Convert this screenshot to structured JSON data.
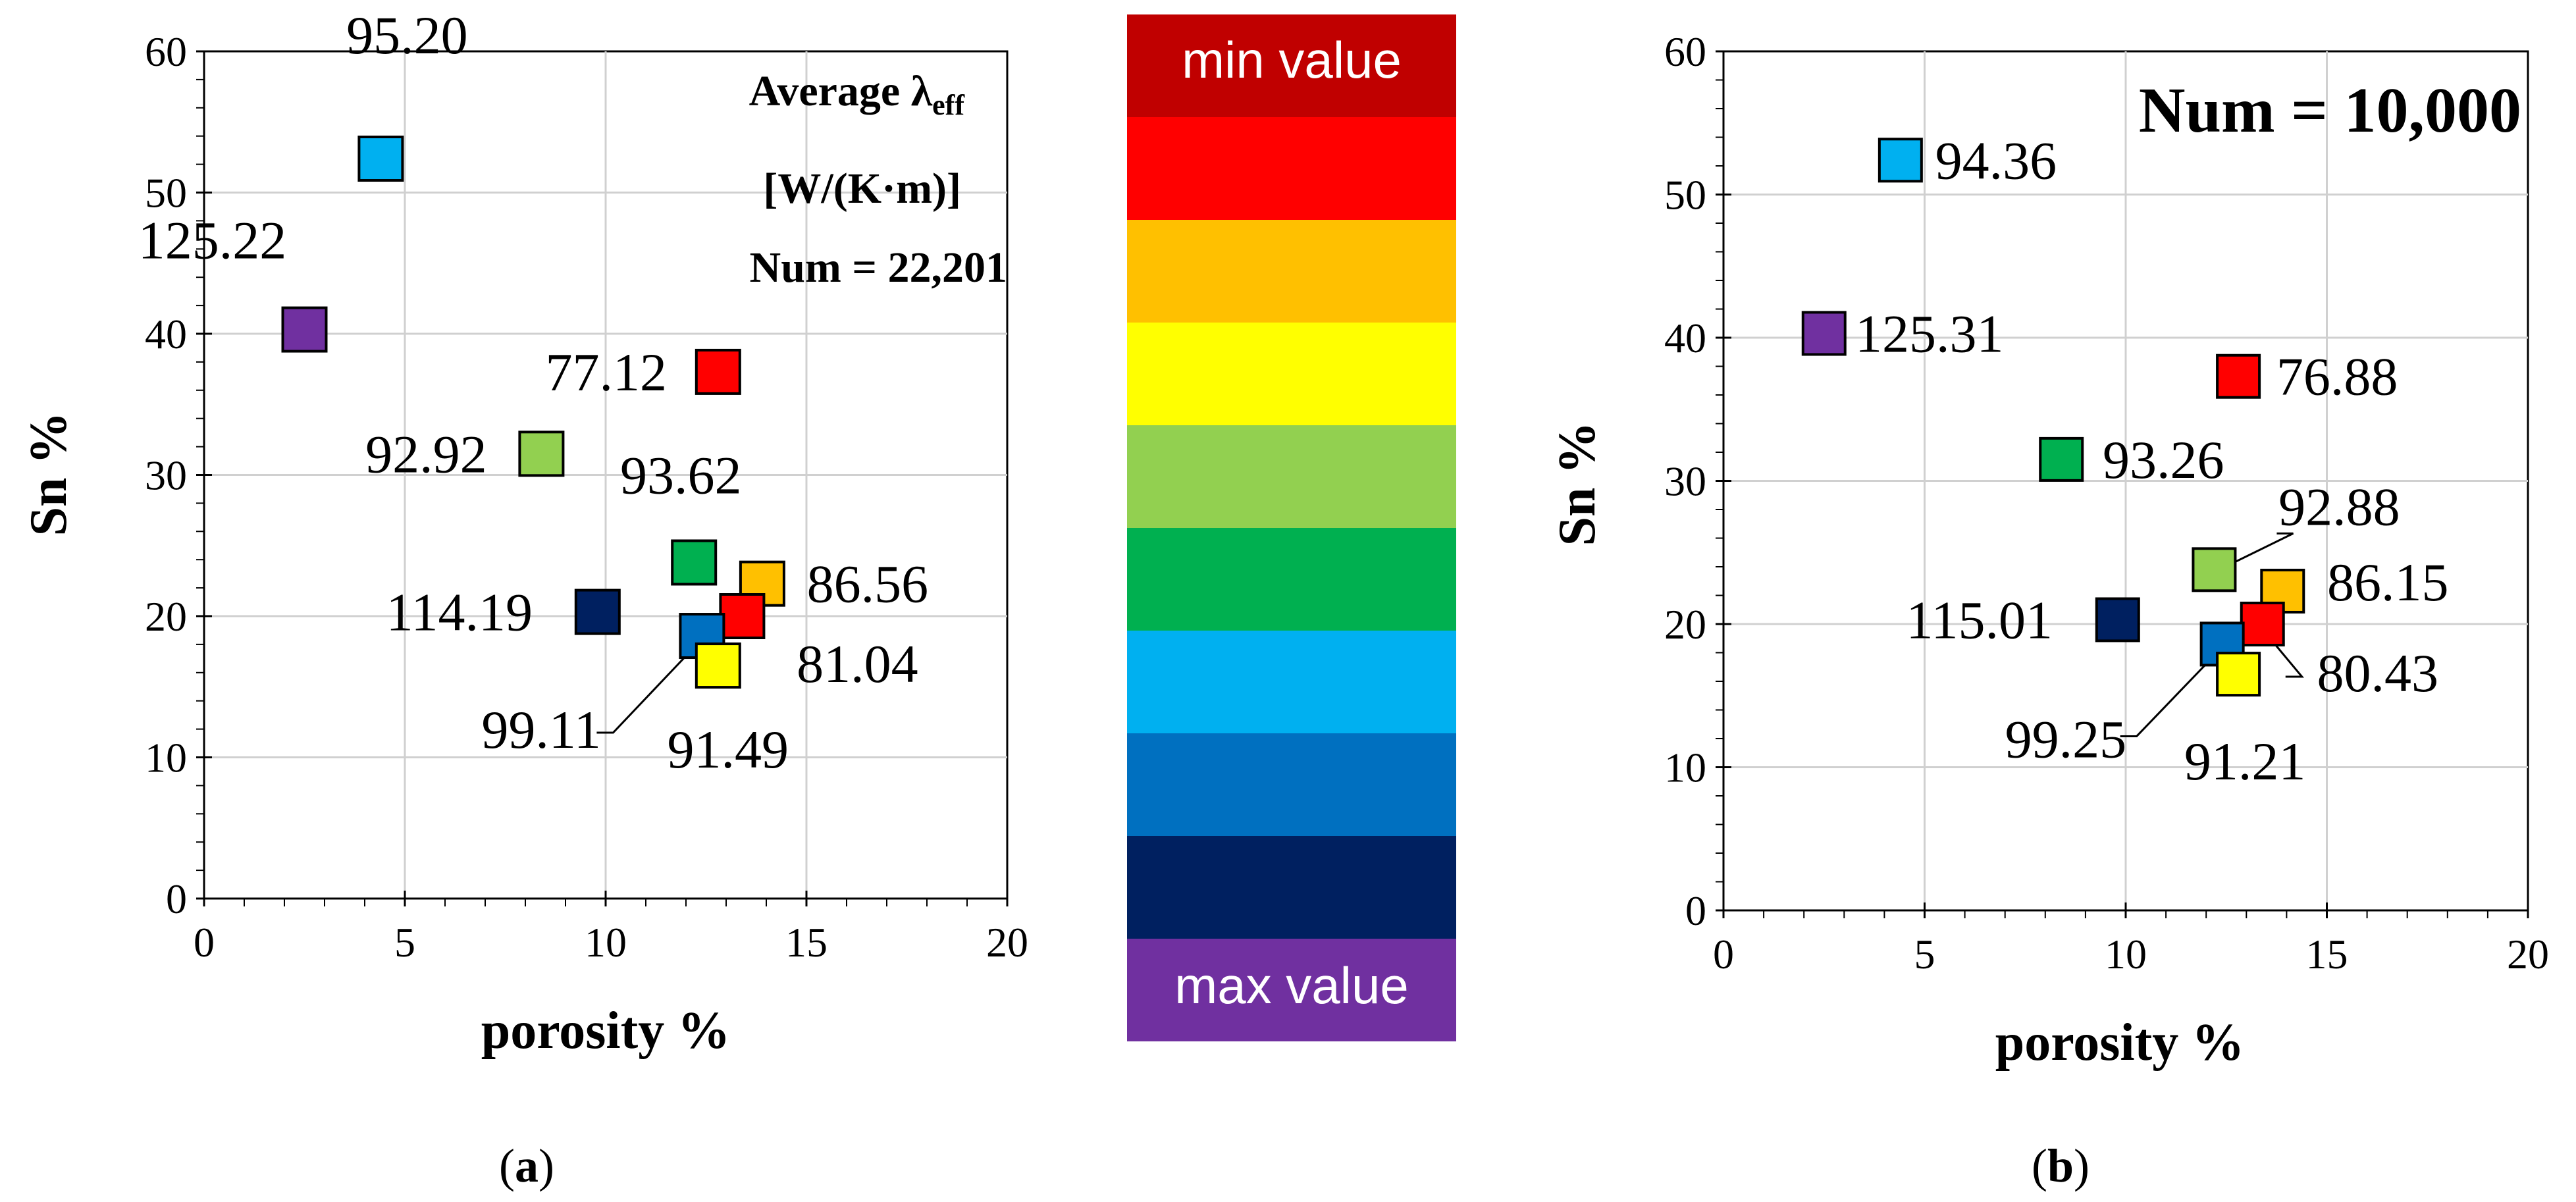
{
  "colors": {
    "purple": "#7030A0",
    "light_blue": "#00B0F0",
    "red": "#FF0000",
    "light_green": "#92D050",
    "green": "#00B050",
    "orange": "#FFC000",
    "navy": "#002060",
    "blue": "#0070C0",
    "yellow": "#FFFF00"
  },
  "legend": {
    "min_label": "min value",
    "max_label": "max value",
    "bands": [
      "#C00000",
      "#FF0000",
      "#FFC000",
      "#FFFF00",
      "#92D050",
      "#00B050",
      "#00B0F0",
      "#0070C0",
      "#002060",
      "#7030A0"
    ]
  },
  "chart_data": [
    {
      "type": "scatter",
      "panel": "a",
      "caption_open": "(",
      "caption_letter": "a",
      "caption_close": ")",
      "xlabel": "porosity %",
      "ylabel": "Sn %",
      "xlim": [
        0,
        20
      ],
      "ylim": [
        0,
        60
      ],
      "xticks": [
        "0",
        "5",
        "10",
        "15",
        "20"
      ],
      "yticks": [
        "0",
        "10",
        "20",
        "30",
        "40",
        "50",
        "60"
      ],
      "annotation_line1": "Average λ",
      "annotation_sub": "eff",
      "annotation_line2": "[W/(K·m)]",
      "annotation_line3": "Num = 22,201",
      "points": [
        {
          "x": 2.5,
          "y": 40.3,
          "value": "125.22",
          "color": "purple"
        },
        {
          "x": 4.4,
          "y": 52.4,
          "value": "95.20",
          "color": "light_blue"
        },
        {
          "x": 12.8,
          "y": 37.3,
          "value": "77.12",
          "color": "red"
        },
        {
          "x": 8.4,
          "y": 31.5,
          "value": "92.92",
          "color": "light_green"
        },
        {
          "x": 12.2,
          "y": 23.8,
          "value": "93.62",
          "color": "green"
        },
        {
          "x": 13.9,
          "y": 22.3,
          "value": "86.56",
          "color": "orange"
        },
        {
          "x": 9.8,
          "y": 20.3,
          "value": "114.19",
          "color": "navy"
        },
        {
          "x": 13.4,
          "y": 20.0,
          "value": "81.04",
          "color": "red"
        },
        {
          "x": 12.4,
          "y": 18.6,
          "value": "99.11",
          "color": "blue"
        },
        {
          "x": 12.8,
          "y": 16.5,
          "value": "91.49",
          "color": "yellow"
        }
      ]
    },
    {
      "type": "scatter",
      "panel": "b",
      "caption_open": "(",
      "caption_letter": "b",
      "caption_close": ")",
      "xlabel": "porosity %",
      "ylabel": "Sn %",
      "xlim": [
        0,
        20
      ],
      "ylim": [
        0,
        60
      ],
      "xticks": [
        "0",
        "5",
        "10",
        "15",
        "20"
      ],
      "yticks": [
        "0",
        "10",
        "20",
        "30",
        "40",
        "50",
        "60"
      ],
      "annotation_line3": "Num = 10,000",
      "points": [
        {
          "x": 2.5,
          "y": 40.3,
          "value": "125.31",
          "color": "purple"
        },
        {
          "x": 4.4,
          "y": 52.4,
          "value": "94.36",
          "color": "light_blue"
        },
        {
          "x": 12.8,
          "y": 37.3,
          "value": "76.88",
          "color": "red"
        },
        {
          "x": 8.4,
          "y": 31.5,
          "value": "93.26",
          "color": "green"
        },
        {
          "x": 12.2,
          "y": 23.8,
          "value": "92.88",
          "color": "light_green"
        },
        {
          "x": 13.9,
          "y": 22.3,
          "value": "86.15",
          "color": "orange"
        },
        {
          "x": 9.8,
          "y": 20.3,
          "value": "115.01",
          "color": "navy"
        },
        {
          "x": 13.4,
          "y": 20.0,
          "value": "80.43",
          "color": "red"
        },
        {
          "x": 12.4,
          "y": 18.6,
          "value": "99.25",
          "color": "blue"
        },
        {
          "x": 12.8,
          "y": 16.5,
          "value": "91.21",
          "color": "yellow"
        }
      ]
    }
  ]
}
